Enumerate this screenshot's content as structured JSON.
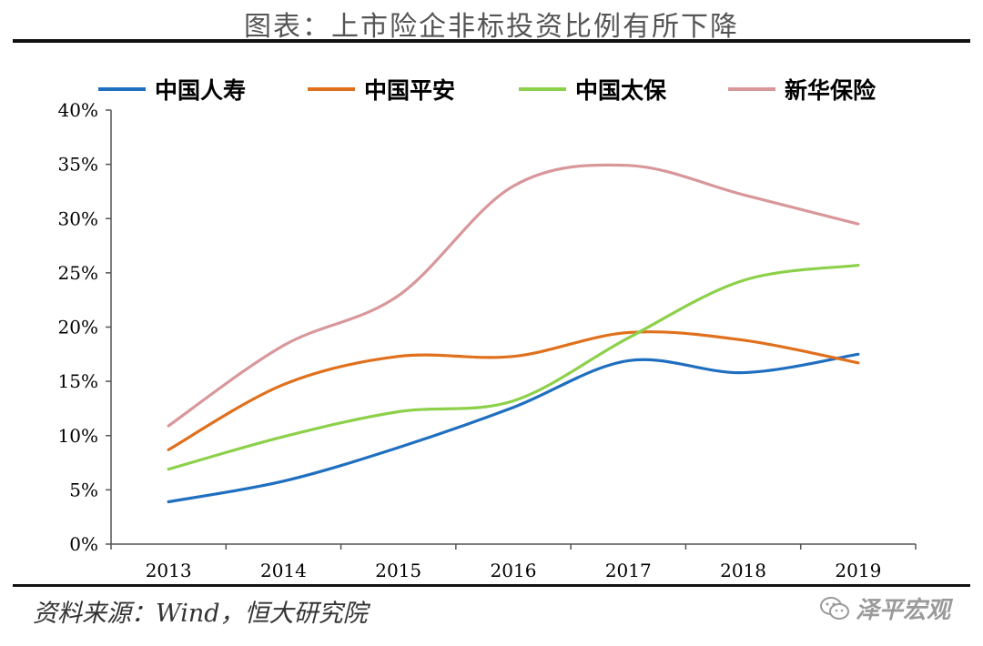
{
  "title": "图表：上市险企非标投资比例有所下降",
  "source": "资料来源：Wind，恒大研究院",
  "watermark": {
    "text": "泽平宏观",
    "icon": "wechat-icon"
  },
  "chart_data": {
    "type": "line",
    "x": [
      "2013",
      "2014",
      "2015",
      "2016",
      "2017",
      "2018",
      "2019"
    ],
    "ylim": [
      0,
      40
    ],
    "yticks": [
      "0%",
      "5%",
      "10%",
      "15%",
      "20%",
      "25%",
      "30%",
      "35%",
      "40%"
    ],
    "xlabel": "",
    "ylabel": "",
    "legend_position": "top",
    "grid": false,
    "series": [
      {
        "name": "中国人寿",
        "color": "#1F6FC0",
        "values": [
          3.9,
          5.8,
          8.9,
          12.6,
          16.9,
          15.8,
          17.5
        ]
      },
      {
        "name": "中国平安",
        "color": "#E0701C",
        "values": [
          8.7,
          14.7,
          17.3,
          17.3,
          19.5,
          18.8,
          16.7
        ]
      },
      {
        "name": "中国太保",
        "color": "#8DD04A",
        "values": [
          6.9,
          9.9,
          12.2,
          13.2,
          19.0,
          24.3,
          25.7
        ]
      },
      {
        "name": "新华保险",
        "color": "#D8979A",
        "values": [
          10.9,
          18.3,
          22.9,
          33.0,
          34.9,
          32.2,
          29.5
        ]
      }
    ]
  }
}
